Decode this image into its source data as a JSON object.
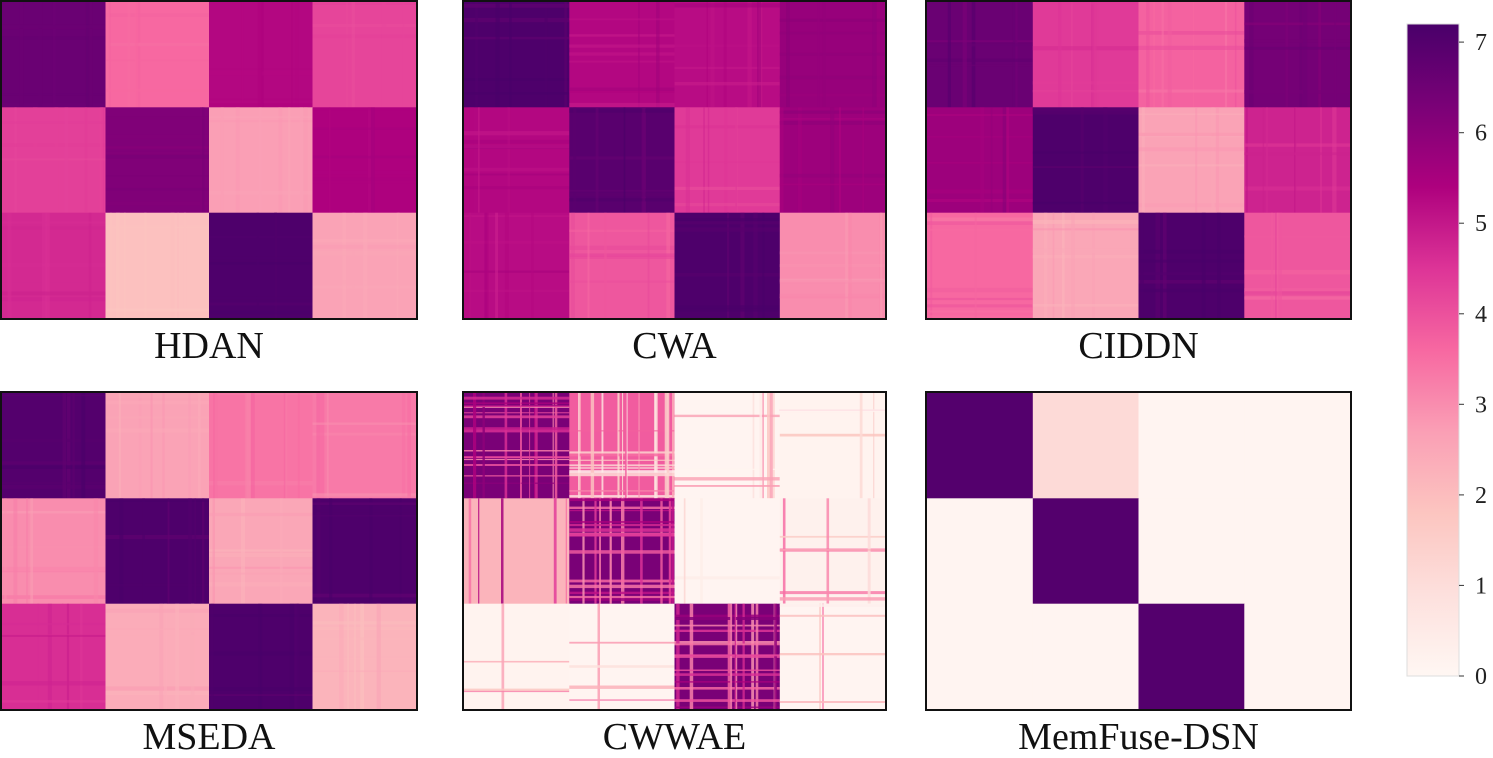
{
  "chart_data": {
    "type": "heatmap",
    "title": "",
    "colormap": "RdPu",
    "colors": {
      "stops": [
        "#fff7f3",
        "#fde0dd",
        "#fcc5c0",
        "#fa9fb5",
        "#f768a1",
        "#dd3497",
        "#ae017e",
        "#7a0177",
        "#49006a"
      ]
    },
    "colorbar": {
      "range": [
        0,
        7.2
      ],
      "ticks": [
        0,
        1,
        2,
        3,
        4,
        5,
        6,
        7
      ],
      "tick_labels": [
        "0",
        "1",
        "2",
        "3",
        "4",
        "5",
        "6",
        "7"
      ]
    },
    "panels": [
      {
        "label": "HDAN",
        "rows": 3,
        "cols": 4,
        "blocks": [
          [
            6.6,
            3.6,
            5.3,
            4.2
          ],
          [
            4.3,
            6.2,
            2.7,
            5.4
          ],
          [
            4.7,
            1.9,
            7.1,
            2.6
          ]
        ],
        "texture": 0.08
      },
      {
        "label": "CWA",
        "rows": 3,
        "cols": 4,
        "blocks": [
          [
            7.1,
            5.3,
            5.2,
            5.8
          ],
          [
            5.3,
            6.9,
            4.4,
            5.7
          ],
          [
            5.2,
            3.9,
            7.1,
            3.0
          ]
        ],
        "texture": 0.22
      },
      {
        "label": "CIDDN",
        "rows": 3,
        "cols": 4,
        "blocks": [
          [
            6.6,
            4.4,
            3.7,
            6.4
          ],
          [
            5.7,
            7.1,
            2.6,
            4.8
          ],
          [
            3.6,
            2.5,
            7.1,
            3.9
          ]
        ],
        "texture": 0.22
      },
      {
        "label": "MSEDA",
        "rows": 3,
        "cols": 4,
        "blocks": [
          [
            7.0,
            2.6,
            3.4,
            3.3
          ],
          [
            3.0,
            7.1,
            2.5,
            7.1
          ],
          [
            4.6,
            2.4,
            7.1,
            2.2
          ]
        ],
        "texture": 0.22
      },
      {
        "label": "CWWAE",
        "rows": 3,
        "cols": 4,
        "blocks": [
          [
            6.3,
            3.8,
            0.1,
            0.15
          ],
          [
            2.2,
            6.3,
            0.1,
            0.25
          ],
          [
            0.15,
            0.1,
            6.3,
            0.1
          ]
        ],
        "texture": 0.9
      },
      {
        "label": "MemFuse-DSN",
        "rows": 3,
        "cols": 4,
        "blocks": [
          [
            7.0,
            1.1,
            0.1,
            0.1
          ],
          [
            0.1,
            7.0,
            0.1,
            0.1
          ],
          [
            0.1,
            0.1,
            7.0,
            0.1
          ]
        ],
        "texture": 0.0
      }
    ]
  }
}
